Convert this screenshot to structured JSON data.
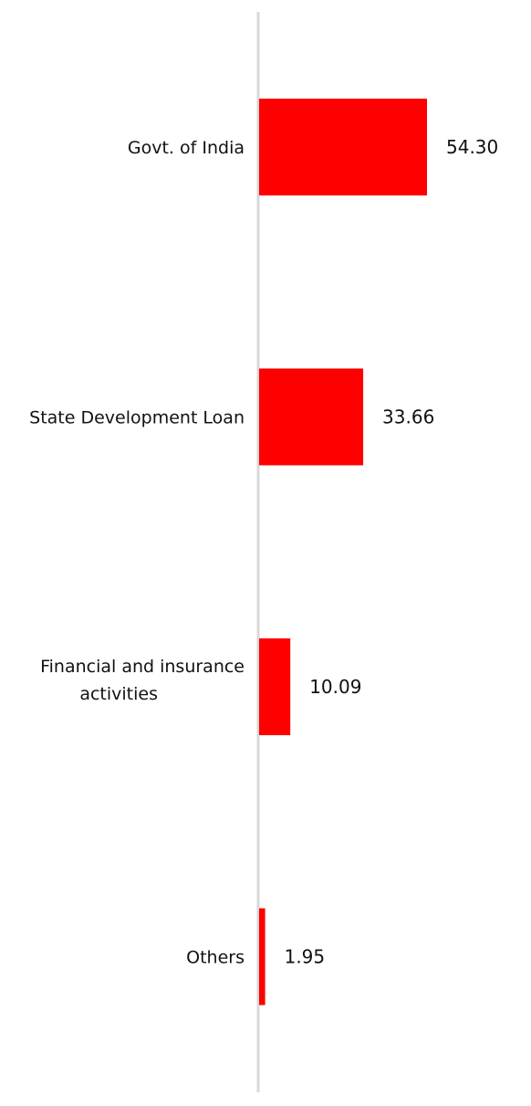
{
  "chart_data": {
    "type": "bar",
    "orientation": "horizontal",
    "categories": [
      [
        "Govt. of India"
      ],
      [
        "State Development Loan"
      ],
      [
        "Financial and insurance",
        "activities"
      ],
      [
        "Others"
      ]
    ],
    "values": [
      54.3,
      33.66,
      10.09,
      1.95
    ],
    "value_labels": [
      "54.30",
      "33.66",
      "10.09",
      "1.95"
    ],
    "bar_color": "#ff0000",
    "axis_color": "#d9d9d9",
    "grid": false,
    "legend": "none"
  }
}
